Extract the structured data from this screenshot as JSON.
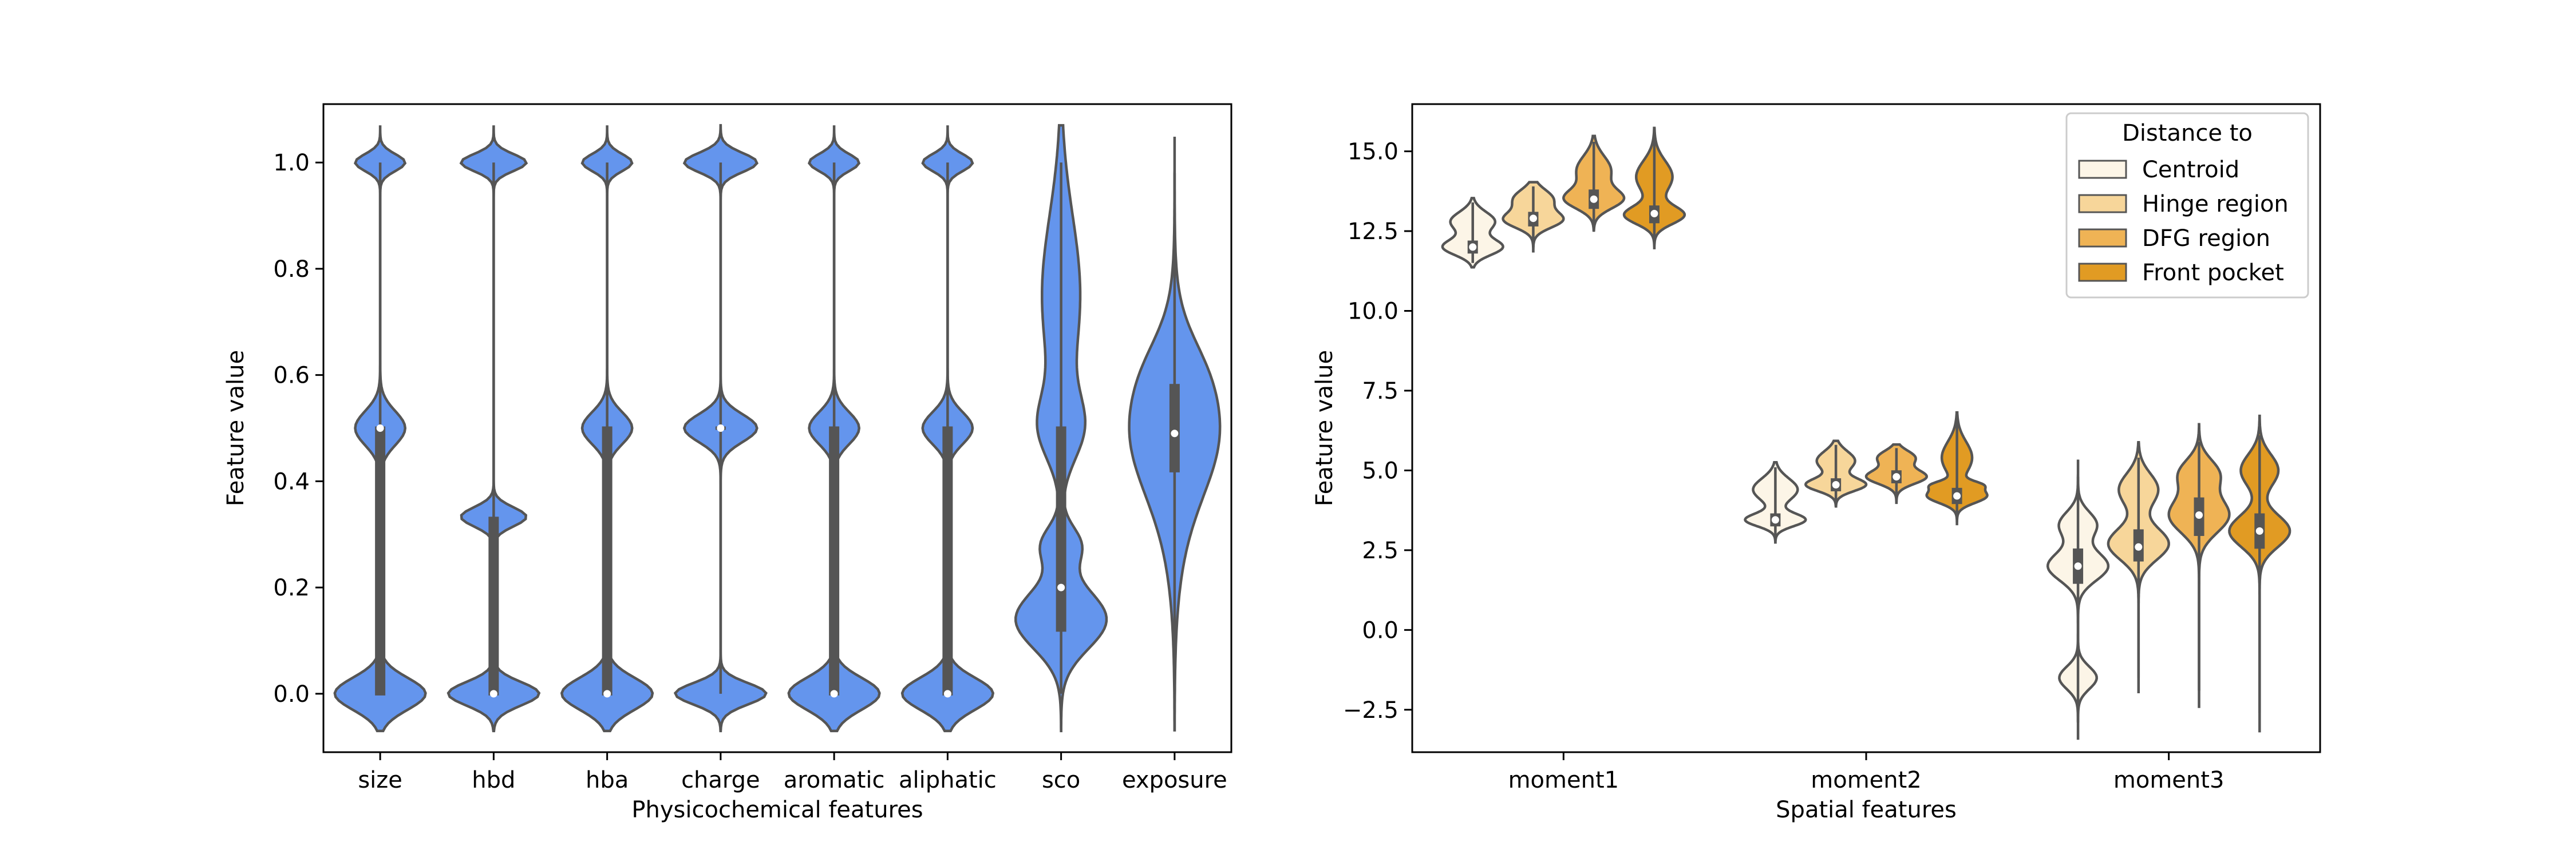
{
  "chart_data": [
    {
      "type": "violin",
      "xlabel": "Physicochemical features",
      "ylabel": "Feature value",
      "ylim": [
        -0.11,
        1.11
      ],
      "yticks": [
        0.0,
        0.2,
        0.4,
        0.6,
        0.8,
        1.0
      ],
      "ytick_labels": [
        "0.0",
        "0.2",
        "0.4",
        "0.6",
        "0.8",
        "1.0"
      ],
      "categories": [
        "size",
        "hbd",
        "hba",
        "charge",
        "aromatic",
        "aliphatic",
        "sco",
        "exposure"
      ],
      "color": "#6495ed",
      "violins": [
        {
          "min": 0.0,
          "max": 1.0,
          "q1": 0.0,
          "q3": 0.5,
          "median": 0.5,
          "modes": [
            [
              0.0,
              0.03
            ],
            [
              0.5,
              0.032
            ],
            [
              1.0,
              0.016
            ]
          ],
          "mode_height": 0.55
        },
        {
          "min": 0.0,
          "max": 1.0,
          "q1": 0.0,
          "q3": 0.33,
          "median": 0.0,
          "modes": [
            [
              0.0,
              0.022
            ],
            [
              0.333,
              0.018
            ],
            [
              1.0,
              0.016
            ]
          ],
          "mode_height": 0.72
        },
        {
          "min": 0.0,
          "max": 1.0,
          "q1": 0.0,
          "q3": 0.5,
          "median": 0.0,
          "modes": [
            [
              0.0,
              0.03
            ],
            [
              0.5,
              0.03
            ],
            [
              1.0,
              0.016
            ]
          ],
          "mode_height": 0.55
        },
        {
          "min": 0.0,
          "max": 1.0,
          "q1": 0.5,
          "q3": 0.5,
          "median": 0.5,
          "modes": [
            [
              0.0,
              0.02
            ],
            [
              0.5,
              0.026
            ],
            [
              1.0,
              0.018
            ]
          ],
          "mode_height": 0.8
        },
        {
          "min": 0.0,
          "max": 1.0,
          "q1": 0.0,
          "q3": 0.5,
          "median": 0.0,
          "modes": [
            [
              0.0,
              0.03
            ],
            [
              0.5,
              0.03
            ],
            [
              1.0,
              0.016
            ]
          ],
          "mode_height": 0.55
        },
        {
          "min": 0.0,
          "max": 1.0,
          "q1": 0.0,
          "q3": 0.5,
          "median": 0.0,
          "modes": [
            [
              0.0,
              0.03
            ],
            [
              0.5,
              0.03
            ],
            [
              1.0,
              0.016
            ]
          ],
          "mode_height": 0.55
        },
        {
          "min": 0.0,
          "max": 1.0,
          "q1": 0.12,
          "q3": 0.5,
          "median": 0.2,
          "modes": [
            [
              0.14,
              0.055
            ],
            [
              0.28,
              0.035
            ],
            [
              0.5,
              0.06
            ],
            [
              0.75,
              0.15
            ]
          ],
          "mode_height": 0.42
        },
        {
          "min": 0.0,
          "max": 0.98,
          "q1": 0.42,
          "q3": 0.58,
          "median": 0.49,
          "modes": [
            [
              0.5,
              0.12
            ],
            [
              0.62,
              0.06
            ],
            [
              0.3,
              0.12
            ]
          ],
          "mode_height": 0.12
        }
      ]
    },
    {
      "type": "violin",
      "xlabel": "Spatial features",
      "ylabel": "Feature value",
      "ylim": [
        -3.83,
        16.48
      ],
      "yticks": [
        -2.5,
        0.0,
        2.5,
        5.0,
        7.5,
        10.0,
        12.5,
        15.0
      ],
      "ytick_labels": [
        "−2.5",
        "0.0",
        "2.5",
        "5.0",
        "7.5",
        "10.0",
        "12.5",
        "15.0"
      ],
      "categories": [
        "moment1",
        "moment2",
        "moment3"
      ],
      "legend": {
        "title": "Distance to",
        "location": "top-right",
        "entries": [
          "Centroid",
          "Hinge region",
          "DFG region",
          "Front pocket"
        ]
      },
      "series_colors": [
        "#fcf5e7",
        "#f7d69a",
        "#efb355",
        "#e19b23"
      ],
      "groups": [
        [
          {
            "min": 11.5,
            "max": 13.4,
            "q1": 11.85,
            "q3": 12.15,
            "median": 12.0,
            "modes": [
              [
                12.0,
                0.25
              ],
              [
                12.8,
                0.3
              ]
            ],
            "mode_height": 0.75
          },
          {
            "min": 12.0,
            "max": 13.9,
            "q1": 12.7,
            "q3": 13.05,
            "median": 12.9,
            "modes": [
              [
                12.85,
                0.25
              ],
              [
                13.5,
                0.3
              ]
            ],
            "mode_height": 0.7
          },
          {
            "min": 12.7,
            "max": 15.3,
            "q1": 13.25,
            "q3": 13.75,
            "median": 13.5,
            "modes": [
              [
                13.5,
                0.3
              ],
              [
                14.4,
                0.45
              ]
            ],
            "mode_height": 0.62
          },
          {
            "min": 12.2,
            "max": 15.5,
            "q1": 12.8,
            "q3": 13.25,
            "median": 13.05,
            "modes": [
              [
                13.0,
                0.28
              ],
              [
                14.2,
                0.5
              ]
            ],
            "mode_height": 0.62
          }
        ],
        [
          {
            "min": 2.9,
            "max": 5.1,
            "q1": 3.3,
            "q3": 3.6,
            "median": 3.45,
            "modes": [
              [
                3.45,
                0.2
              ],
              [
                4.4,
                0.35
              ]
            ],
            "mode_height": 0.75
          },
          {
            "min": 4.0,
            "max": 5.8,
            "q1": 4.4,
            "q3": 4.7,
            "median": 4.55,
            "modes": [
              [
                4.55,
                0.2
              ],
              [
                5.3,
                0.3
              ]
            ],
            "mode_height": 0.65
          },
          {
            "min": 4.1,
            "max": 5.7,
            "q1": 4.65,
            "q3": 4.95,
            "median": 4.8,
            "modes": [
              [
                4.8,
                0.22
              ],
              [
                5.4,
                0.22
              ]
            ],
            "mode_height": 0.62
          },
          {
            "min": 3.5,
            "max": 6.6,
            "q1": 4.0,
            "q3": 4.4,
            "median": 4.2,
            "modes": [
              [
                4.2,
                0.22
              ],
              [
                4.55,
                0.12
              ],
              [
                5.4,
                0.5
              ]
            ],
            "mode_height": 0.52
          }
        ],
        [
          {
            "min": -2.9,
            "max": 4.8,
            "q1": 1.5,
            "q3": 2.5,
            "median": 2.0,
            "modes": [
              [
                2.0,
                0.45
              ],
              [
                -1.5,
                0.35
              ],
              [
                3.3,
                0.4
              ]
            ],
            "mode_height": 0.62
          },
          {
            "min": -1.5,
            "max": 5.4,
            "q1": 2.2,
            "q3": 3.1,
            "median": 2.6,
            "modes": [
              [
                2.7,
                0.5
              ],
              [
                4.4,
                0.5
              ]
            ],
            "mode_height": 0.65
          },
          {
            "min": -1.9,
            "max": 5.9,
            "q1": 3.0,
            "q3": 4.1,
            "median": 3.6,
            "modes": [
              [
                3.6,
                0.55
              ],
              [
                4.9,
                0.45
              ]
            ],
            "mode_height": 0.65
          },
          {
            "min": -2.6,
            "max": 6.1,
            "q1": 2.6,
            "q3": 3.6,
            "median": 3.1,
            "modes": [
              [
                3.1,
                0.5
              ],
              [
                5.0,
                0.5
              ]
            ],
            "mode_height": 0.62
          }
        ]
      ]
    }
  ]
}
